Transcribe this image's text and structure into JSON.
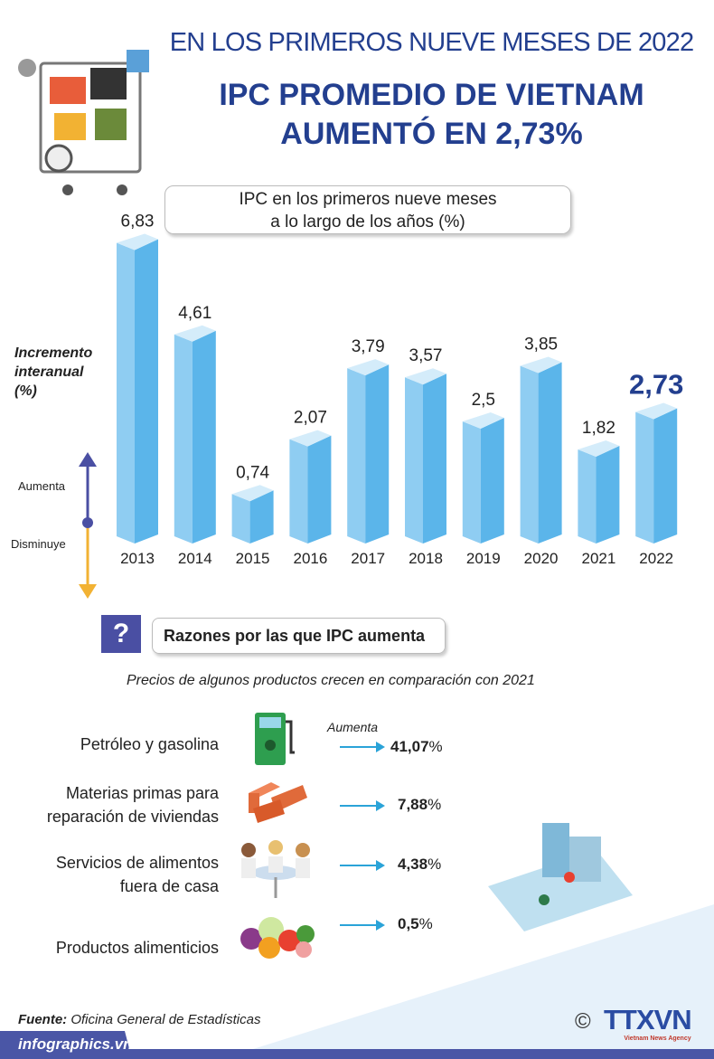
{
  "header": {
    "subtitle": "EN LOS PRIMEROS NUEVE MESES DE 2022",
    "title_line1": "IPC PROMEDIO DE VIETNAM",
    "title_line2": "AUMENTÓ EN 2,73%"
  },
  "chart_data": {
    "type": "bar",
    "title_line1": "IPC en los primeros nueve meses",
    "title_line2": "a lo largo de los años (%)",
    "ylabel_lines": [
      "Incremento",
      "interanual",
      "(%)"
    ],
    "categories": [
      "2013",
      "2014",
      "2015",
      "2016",
      "2017",
      "2018",
      "2019",
      "2020",
      "2021",
      "2022"
    ],
    "values": [
      6.83,
      4.61,
      0.74,
      2.07,
      3.79,
      3.57,
      2.5,
      3.85,
      1.82,
      2.73
    ],
    "labels": [
      "6,83",
      "4,61",
      "0,74",
      "2,07",
      "3,79",
      "3,57",
      "2,5",
      "3,85",
      "1,82",
      "2,73"
    ],
    "highlight": "2022",
    "legend_up": "Aumenta",
    "legend_down": "Disminuye",
    "colors": {
      "bar_front": "#5bb5ea",
      "bar_side": "#8fcdf2",
      "bar_top": "#d4ecfa",
      "highlight_label": "#233f8f"
    }
  },
  "reasons": {
    "icon": "question-icon",
    "icon_text": "?",
    "title": "Razones por las que IPC aumenta",
    "subtitle": "Precios de algunos productos crecen en comparación con 2021",
    "arrow_label": "Aumenta",
    "items": [
      {
        "lines": [
          "Petróleo y gasolina"
        ],
        "value": "41,07",
        "unit": "%",
        "icon": "fuel-pump-icon"
      },
      {
        "lines": [
          "Materias primas para",
          "reparación de viviendas"
        ],
        "value": "7,88",
        "unit": "%",
        "icon": "bricks-icon"
      },
      {
        "lines": [
          "Servicios de alimentos",
          "fuera de casa"
        ],
        "value": "4,38",
        "unit": "%",
        "icon": "dining-people-icon"
      },
      {
        "lines": [
          "Productos alimenticios"
        ],
        "value": "0,5",
        "unit": "%",
        "icon": "vegetables-icon"
      }
    ]
  },
  "footer": {
    "source_label": "Fuente:",
    "source": "Oficina General de Estadísticas",
    "website": "infographics.vn",
    "logo": "TTXVN",
    "logo_sub": "Vietnam News Agency",
    "copyright": "©"
  }
}
